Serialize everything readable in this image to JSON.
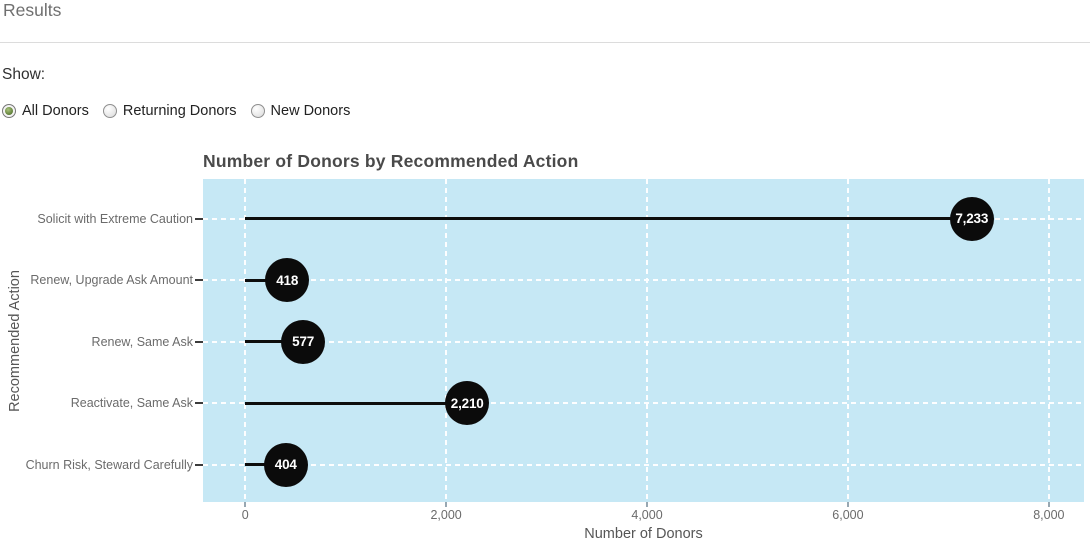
{
  "page": {
    "title": "Results"
  },
  "controls": {
    "show_label": "Show:",
    "options": [
      {
        "label": "All Donors",
        "selected": true
      },
      {
        "label": "Returning Donors",
        "selected": false
      },
      {
        "label": "New Donors",
        "selected": false
      }
    ]
  },
  "chart_data": {
    "type": "lollipop",
    "title": "Number of Donors by Recommended Action",
    "xlabel": "Number of Donors",
    "ylabel": "Recommended Action",
    "categories": [
      "Solicit with Extreme Caution",
      "Renew, Upgrade Ask Amount",
      "Renew, Same Ask",
      "Reactivate, Same Ask",
      "Churn Risk, Steward Carefully"
    ],
    "values": [
      7233,
      418,
      577,
      2210,
      404
    ],
    "value_labels": [
      "7,233",
      "418",
      "577",
      "2,210",
      "404"
    ],
    "x_ticks": [
      0,
      2000,
      4000,
      6000,
      8000
    ],
    "x_tick_labels": [
      "0",
      "2,000",
      "4,000",
      "6,000",
      "8,000"
    ],
    "xlim": [
      -420,
      8350
    ],
    "grid": "white-dashed",
    "legend": "none",
    "colors": {
      "plot_bg": "#c6e8f5",
      "marker": "#0b0b0b",
      "marker_text": "#ffffff",
      "gridline": "#ffffff"
    }
  }
}
